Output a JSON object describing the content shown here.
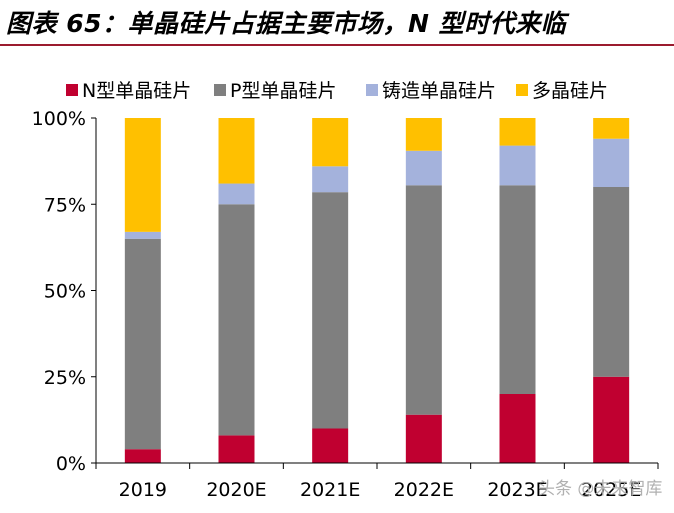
{
  "title": "图表 65：单晶硅片占据主要市场，N 型时代来临",
  "watermark": "头条 @未来智库",
  "colors": {
    "title_rule": "#9b1b2e"
  },
  "chart_data": {
    "type": "bar",
    "stacked": true,
    "categories": [
      "2019",
      "2020E",
      "2021E",
      "2022E",
      "2023E",
      "2025E"
    ],
    "series": [
      {
        "name": "N型单晶硅片",
        "color": "#c00030",
        "values": [
          4,
          8,
          10,
          14,
          20,
          25
        ]
      },
      {
        "name": "P型单晶硅片",
        "color": "#7f7f7f",
        "values": [
          61,
          67,
          68.5,
          66.5,
          60.5,
          55
        ]
      },
      {
        "name": "铸造单晶硅片",
        "color": "#a4b2dc",
        "values": [
          2,
          6,
          7.5,
          10,
          11.5,
          14
        ]
      },
      {
        "name": "多晶硅片",
        "color": "#ffc000",
        "values": [
          33,
          19,
          14,
          9.5,
          8,
          6
        ]
      }
    ],
    "yticks": [
      "0%",
      "25%",
      "50%",
      "75%",
      "100%"
    ],
    "ylim": [
      0,
      100
    ],
    "legend_position": "top",
    "grid": false
  }
}
